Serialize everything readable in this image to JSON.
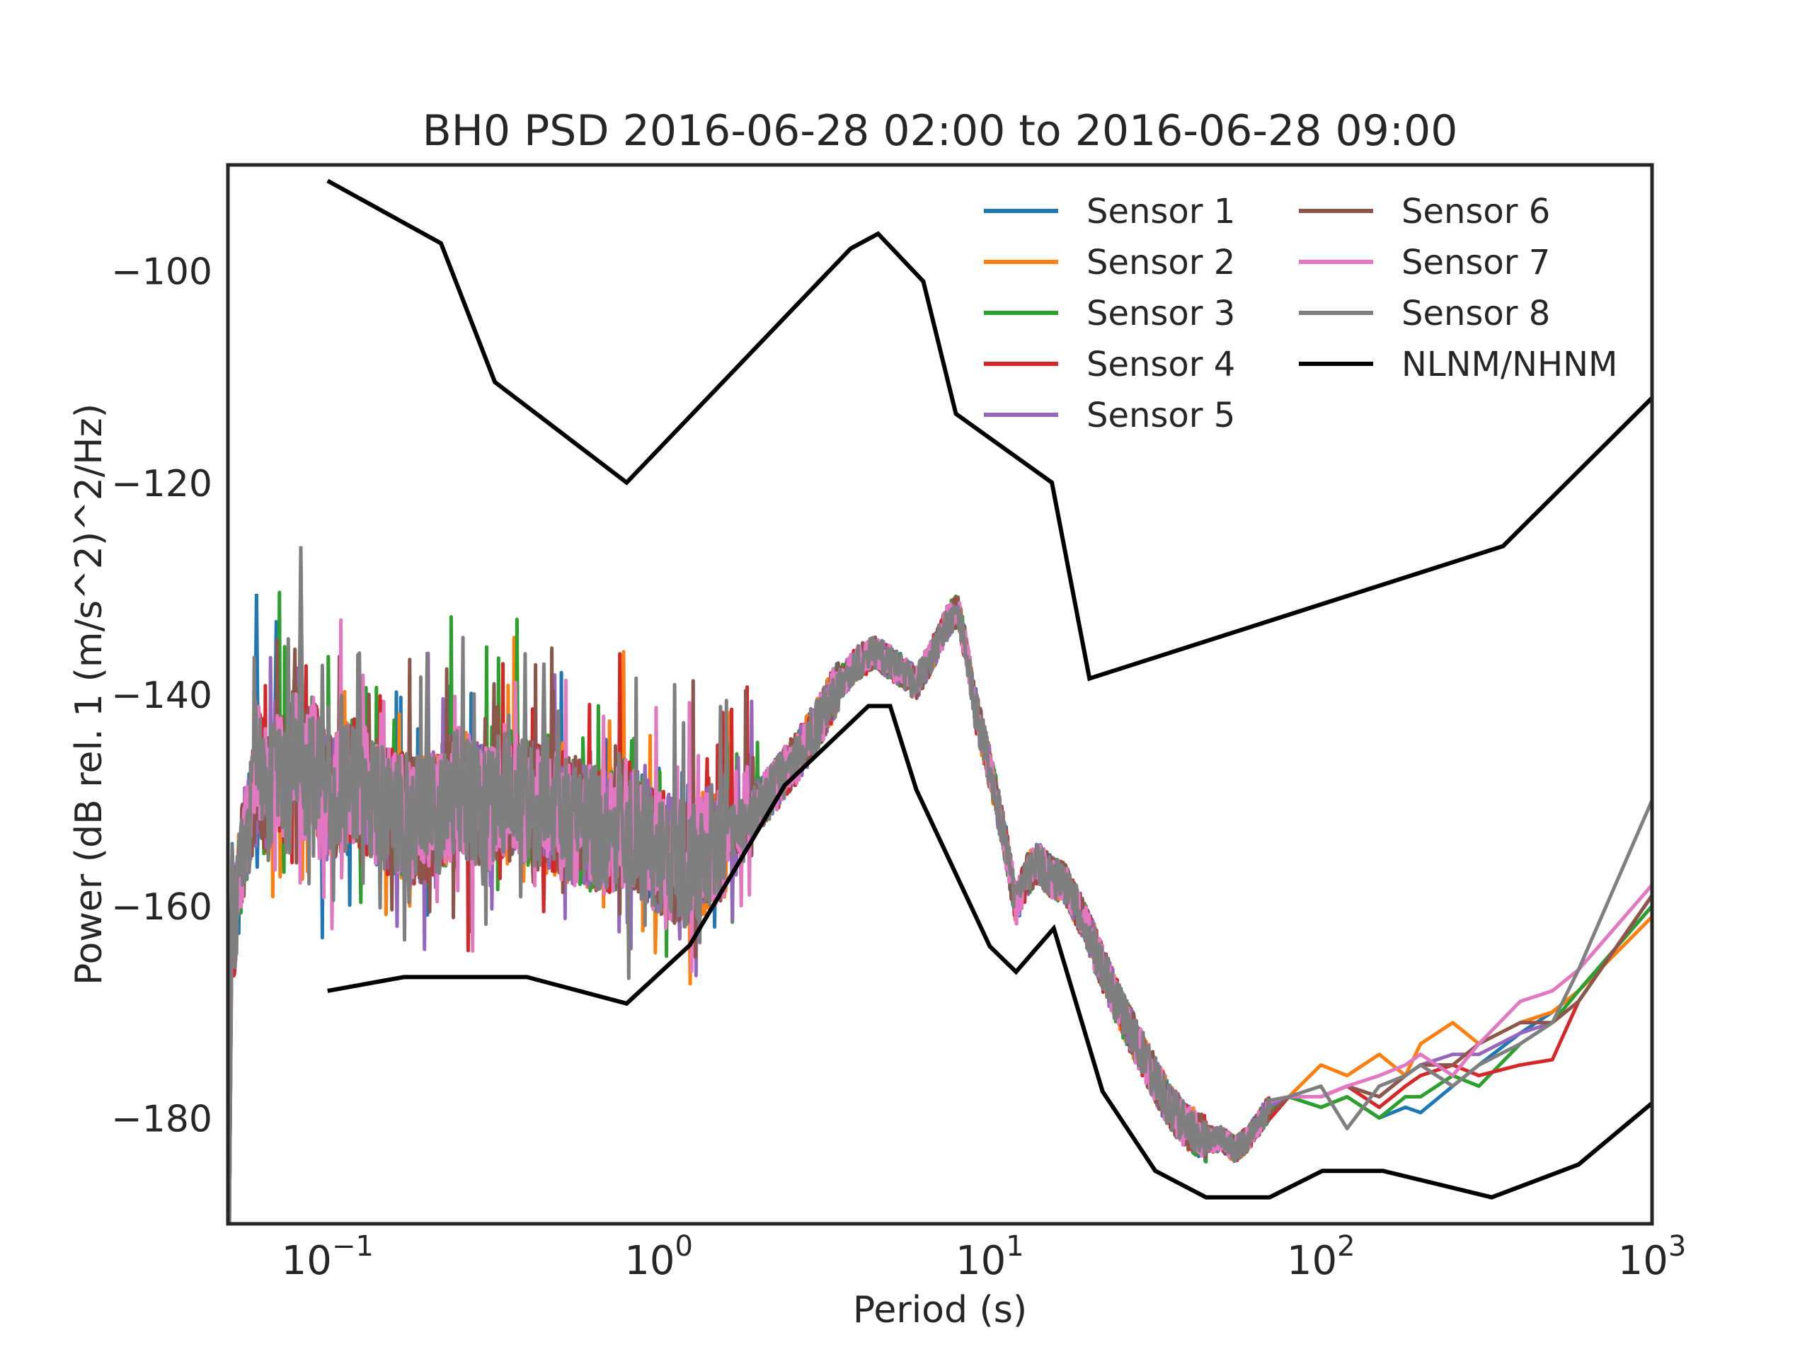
{
  "chart_data": {
    "type": "line",
    "title": "BH0 PSD 2016-06-28 02:00 to 2016-06-28 09:00",
    "xlabel": "Period (s)",
    "ylabel": "Power (dB rel. 1 (m/s^2)^2/Hz)",
    "x_scale": "log",
    "xlim": [
      0.05,
      1000
    ],
    "ylim": [
      -190,
      -90
    ],
    "x_ticks": [
      0.1,
      1,
      10,
      100,
      1000
    ],
    "x_tick_labels": [
      {
        "base": "10",
        "exp": "−1"
      },
      {
        "base": "10",
        "exp": "0"
      },
      {
        "base": "10",
        "exp": "1"
      },
      {
        "base": "10",
        "exp": "2"
      },
      {
        "base": "10",
        "exp": "3"
      }
    ],
    "y_ticks": [
      -100,
      -120,
      -140,
      -160,
      -180
    ],
    "y_tick_labels": [
      "−100",
      "−120",
      "−140",
      "−160",
      "−180"
    ],
    "grid": false,
    "legend": {
      "position": "top-right",
      "columns": 2,
      "entries": [
        "Sensor 1",
        "Sensor 2",
        "Sensor 3",
        "Sensor 4",
        "Sensor 5",
        "Sensor 6",
        "Sensor 7",
        "Sensor 8",
        "NLNM/NHNM"
      ]
    },
    "psd_shared": [
      [
        0.052,
        -163
      ],
      [
        0.055,
        -155
      ],
      [
        0.058,
        -152
      ],
      [
        0.062,
        -147
      ],
      [
        0.066,
        -150
      ],
      [
        0.07,
        -146
      ],
      [
        0.075,
        -149
      ],
      [
        0.08,
        -144
      ],
      [
        0.085,
        -148
      ],
      [
        0.09,
        -146
      ],
      [
        0.1,
        -150
      ],
      [
        0.12,
        -148
      ],
      [
        0.15,
        -151
      ],
      [
        0.2,
        -152
      ],
      [
        0.25,
        -149
      ],
      [
        0.3,
        -151
      ],
      [
        0.35,
        -149
      ],
      [
        0.45,
        -151
      ],
      [
        0.55,
        -152
      ],
      [
        0.7,
        -153
      ],
      [
        0.8,
        -152
      ],
      [
        1.0,
        -155
      ],
      [
        1.2,
        -156
      ],
      [
        1.5,
        -154
      ],
      [
        1.8,
        -152
      ],
      [
        2.2,
        -149
      ],
      [
        2.6,
        -146
      ],
      [
        3.0,
        -143
      ],
      [
        3.5,
        -139
      ],
      [
        4.0,
        -137
      ],
      [
        4.5,
        -136
      ],
      [
        5.0,
        -137
      ],
      [
        5.5,
        -138
      ],
      [
        6.0,
        -139
      ],
      [
        6.5,
        -137
      ],
      [
        7.0,
        -135
      ],
      [
        7.5,
        -133
      ],
      [
        8.0,
        -132
      ],
      [
        8.5,
        -136
      ],
      [
        9.0,
        -141
      ],
      [
        10.0,
        -147
      ],
      [
        11.0,
        -153
      ],
      [
        12.0,
        -160
      ],
      [
        13.0,
        -157
      ],
      [
        14.0,
        -156
      ],
      [
        15.0,
        -157
      ],
      [
        17.0,
        -158
      ],
      [
        19.0,
        -161
      ],
      [
        22.0,
        -166
      ],
      [
        25.0,
        -170
      ],
      [
        30.0,
        -175
      ],
      [
        35.0,
        -179
      ],
      [
        40.0,
        -181
      ],
      [
        45.0,
        -182
      ],
      [
        50.0,
        -182
      ],
      [
        55.0,
        -183
      ],
      [
        60.0,
        -182
      ],
      [
        70.0,
        -179
      ]
    ],
    "series": [
      {
        "name": "Sensor 1",
        "color": "#1f77b4",
        "spikes": [
          [
            0.061,
            -130.5
          ],
          [
            0.07,
            -133
          ],
          [
            0.083,
            -127
          ]
        ],
        "tail": [
          [
            80,
            -178
          ],
          [
            100,
            -179
          ],
          [
            120,
            -178
          ],
          [
            150,
            -180
          ],
          [
            180,
            -179
          ],
          [
            200,
            -179.5
          ],
          [
            250,
            -177
          ],
          [
            300,
            -175
          ],
          [
            400,
            -172
          ],
          [
            500,
            -170
          ],
          [
            600,
            -168
          ],
          [
            1000,
            -160
          ]
        ]
      },
      {
        "name": "Sensor 2",
        "color": "#ff7f0e",
        "spikes": [],
        "tail": [
          [
            80,
            -178
          ],
          [
            100,
            -175
          ],
          [
            120,
            -176
          ],
          [
            150,
            -174
          ],
          [
            180,
            -176
          ],
          [
            200,
            -173
          ],
          [
            250,
            -171
          ],
          [
            300,
            -173
          ],
          [
            400,
            -171
          ],
          [
            500,
            -170
          ],
          [
            600,
            -168
          ],
          [
            1000,
            -161
          ]
        ]
      },
      {
        "name": "Sensor 3",
        "color": "#2ca02c",
        "spikes": [],
        "tail": [
          [
            80,
            -178
          ],
          [
            100,
            -179
          ],
          [
            120,
            -178
          ],
          [
            150,
            -180
          ],
          [
            180,
            -178
          ],
          [
            200,
            -178
          ],
          [
            250,
            -176
          ],
          [
            300,
            -177
          ],
          [
            400,
            -173
          ],
          [
            500,
            -171
          ],
          [
            600,
            -168
          ],
          [
            1000,
            -160
          ]
        ]
      },
      {
        "name": "Sensor 4",
        "color": "#d62728",
        "spikes": [],
        "tail": [
          [
            80,
            -178
          ],
          [
            100,
            -178
          ],
          [
            120,
            -177
          ],
          [
            150,
            -179
          ],
          [
            180,
            -177
          ],
          [
            200,
            -176
          ],
          [
            250,
            -175
          ],
          [
            300,
            -176
          ],
          [
            400,
            -175
          ],
          [
            500,
            -174.5
          ],
          [
            600,
            -169
          ],
          [
            1000,
            -159
          ]
        ]
      },
      {
        "name": "Sensor 5",
        "color": "#9467bd",
        "spikes": [],
        "tail": [
          [
            80,
            -178
          ],
          [
            100,
            -178
          ],
          [
            120,
            -177
          ],
          [
            150,
            -178
          ],
          [
            180,
            -176
          ],
          [
            200,
            -175
          ],
          [
            250,
            -174
          ],
          [
            300,
            -174
          ],
          [
            400,
            -172
          ],
          [
            500,
            -171
          ],
          [
            600,
            -169
          ],
          [
            1000,
            -159
          ]
        ]
      },
      {
        "name": "Sensor 6",
        "color": "#8c564b",
        "spikes": [],
        "tail": [
          [
            80,
            -178
          ],
          [
            100,
            -178
          ],
          [
            120,
            -177
          ],
          [
            150,
            -178
          ],
          [
            180,
            -176
          ],
          [
            200,
            -175
          ],
          [
            250,
            -175
          ],
          [
            300,
            -173
          ],
          [
            400,
            -171
          ],
          [
            500,
            -171
          ],
          [
            600,
            -169
          ],
          [
            1000,
            -159
          ]
        ]
      },
      {
        "name": "Sensor 7",
        "color": "#e377c2",
        "spikes": [],
        "tail": [
          [
            80,
            -178
          ],
          [
            100,
            -178
          ],
          [
            120,
            -177
          ],
          [
            150,
            -176
          ],
          [
            180,
            -175
          ],
          [
            200,
            -174
          ],
          [
            250,
            -176
          ],
          [
            300,
            -173
          ],
          [
            400,
            -169
          ],
          [
            500,
            -168
          ],
          [
            600,
            -166
          ],
          [
            1000,
            -158
          ]
        ]
      },
      {
        "name": "Sensor 8",
        "color": "#7f7f7f",
        "spikes": [
          [
            0.083,
            -126
          ],
          [
            0.2,
            -136
          ],
          [
            0.45,
            -137
          ]
        ],
        "tail": [
          [
            80,
            -178
          ],
          [
            100,
            -177
          ],
          [
            120,
            -181
          ],
          [
            150,
            -177
          ],
          [
            180,
            -176
          ],
          [
            200,
            -175
          ],
          [
            250,
            -177
          ],
          [
            300,
            -175
          ],
          [
            400,
            -173
          ],
          [
            500,
            -171
          ],
          [
            600,
            -166
          ],
          [
            1000,
            -150
          ]
        ]
      }
    ],
    "reference_curves": {
      "name": "NLNM/NHNM",
      "color": "#000000",
      "nhnm": [
        [
          0.1,
          -91.5
        ],
        [
          0.22,
          -97.4
        ],
        [
          0.32,
          -110.5
        ],
        [
          0.8,
          -120
        ],
        [
          3.8,
          -97.9
        ],
        [
          4.6,
          -96.5
        ],
        [
          6.3,
          -101
        ],
        [
          7.9,
          -113.5
        ],
        [
          15.4,
          -120
        ],
        [
          20,
          -138.5
        ],
        [
          354.8,
          -126
        ],
        [
          1000,
          -112
        ]
      ],
      "nlnm": [
        [
          0.1,
          -168
        ],
        [
          0.17,
          -166.7
        ],
        [
          0.4,
          -166.7
        ],
        [
          0.8,
          -169.2
        ],
        [
          1.24,
          -163.7
        ],
        [
          2.4,
          -148.6
        ],
        [
          4.3,
          -141.1
        ],
        [
          5.0,
          -141.1
        ],
        [
          6.0,
          -149
        ],
        [
          10.0,
          -163.8
        ],
        [
          12.0,
          -166.2
        ],
        [
          15.6,
          -162.1
        ],
        [
          21.9,
          -177.5
        ],
        [
          31.6,
          -185
        ],
        [
          45,
          -187.5
        ],
        [
          70,
          -187.5
        ],
        [
          101,
          -185
        ],
        [
          154,
          -185
        ],
        [
          328,
          -187.5
        ],
        [
          600,
          -184.4
        ],
        [
          1000,
          -178.6
        ]
      ]
    }
  }
}
